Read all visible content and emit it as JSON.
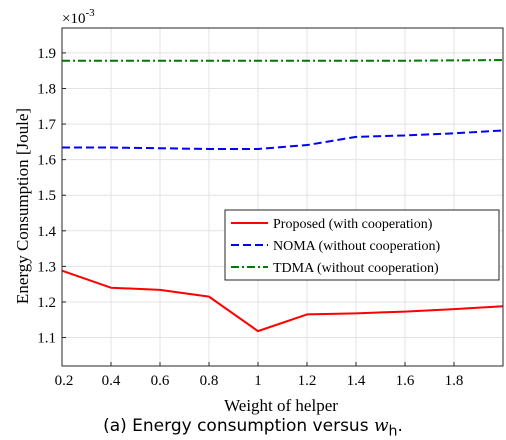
{
  "chart_data": {
    "type": "line",
    "title": "",
    "xlabel": "Weight of helper",
    "ylabel": "Energy Consumption [Joule]",
    "y_exponent": "×10",
    "y_exponent_power": "-3",
    "xlim": [
      0.2,
      2.0
    ],
    "ylim": [
      1.02,
      1.97
    ],
    "x_ticks": [
      "0.2",
      "0.4",
      "0.6",
      "0.8",
      "1",
      "1.2",
      "1.4",
      "1.6",
      "1.8"
    ],
    "y_ticks": [
      "1.1",
      "1.2",
      "1.3",
      "1.4",
      "1.5",
      "1.6",
      "1.7",
      "1.8",
      "1.9"
    ],
    "grid": true,
    "legend_position": "right",
    "x": [
      0.2,
      0.4,
      0.6,
      0.8,
      1.0,
      1.2,
      1.4,
      1.6,
      1.8,
      2.0
    ],
    "series": [
      {
        "name": "Proposed (with cooperation)",
        "color": "#ff0000",
        "dash": "solid",
        "values": [
          1.288,
          1.24,
          1.234,
          1.215,
          1.118,
          1.165,
          1.168,
          1.173,
          1.18,
          1.188
        ]
      },
      {
        "name": "NOMA (without cooperation)",
        "color": "#0000ff",
        "dash": "dashed",
        "values": [
          1.634,
          1.634,
          1.632,
          1.63,
          1.63,
          1.641,
          1.664,
          1.668,
          1.674,
          1.682
        ]
      },
      {
        "name": "TDMA (without cooperation)",
        "color": "#007a00",
        "dash": "dashdot",
        "values": [
          1.878,
          1.878,
          1.878,
          1.878,
          1.878,
          1.878,
          1.878,
          1.878,
          1.879,
          1.88
        ]
      }
    ]
  },
  "caption": {
    "prefix": "(a) Energy consumption versus ",
    "variable": "w",
    "subscript": "h",
    "suffix": "."
  }
}
